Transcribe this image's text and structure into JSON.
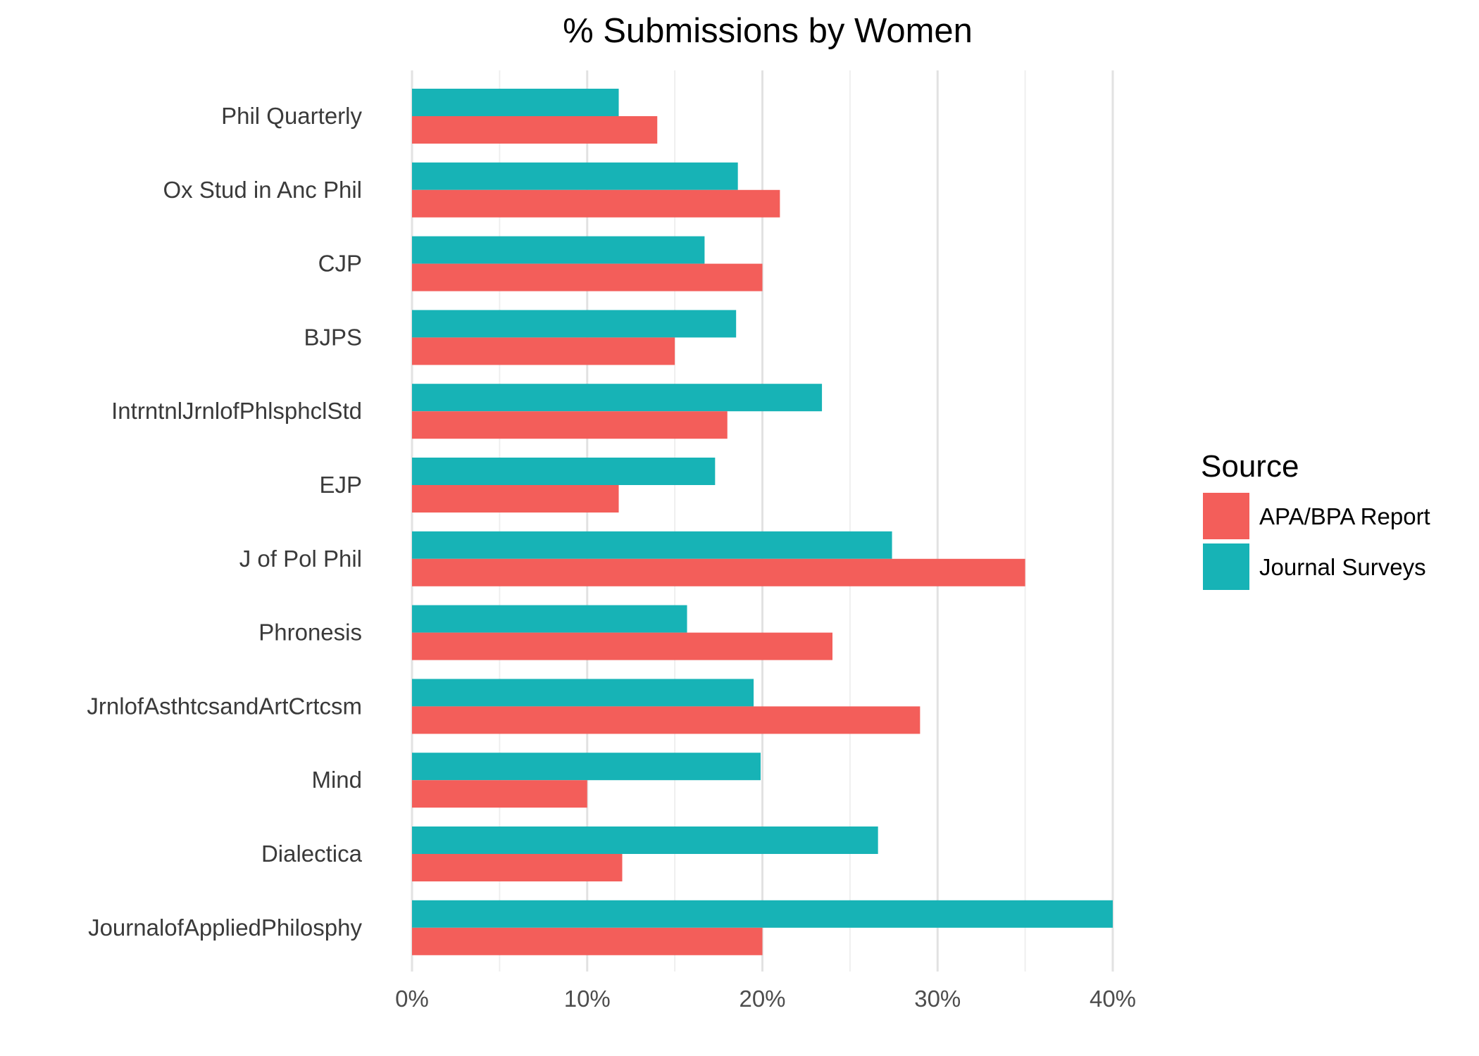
{
  "chart_data": {
    "type": "bar",
    "orientation": "horizontal",
    "title": "% Submissions by Women",
    "xlabel": "",
    "ylabel": "",
    "categories": [
      "Phil Quarterly",
      "Ox Stud in Anc Phil",
      "CJP",
      "BJPS",
      "IntrntnlJrnlofPhlsphclStd",
      "EJP",
      "J of Pol Phil",
      "Phronesis",
      "JrnlofAsthtcsandArtCrtcsm",
      "Mind",
      "Dialectica",
      "JournalofAppliedPhilosphy"
    ],
    "series": [
      {
        "name": "Journal Surveys",
        "color": "#17b3b6",
        "values": [
          11.8,
          18.6,
          16.7,
          18.5,
          23.4,
          17.3,
          27.4,
          15.7,
          19.5,
          19.9,
          26.6,
          40.0
        ]
      },
      {
        "name": "APA/BPA Report",
        "color": "#f35e5a",
        "values": [
          14.0,
          21.0,
          20.0,
          15.0,
          18.0,
          11.8,
          35.0,
          24.0,
          29.0,
          10.0,
          12.0,
          20.0
        ]
      }
    ],
    "xlim": [
      0,
      40
    ],
    "x_ticks": [
      0,
      10,
      20,
      30,
      40
    ],
    "x_tick_labels": [
      "0%",
      "10%",
      "20%",
      "30%",
      "40%"
    ],
    "grid": true,
    "legend": {
      "title": "Source",
      "position": "right",
      "entries": [
        {
          "label": "APA/BPA Report",
          "color": "#f35e5a"
        },
        {
          "label": "Journal Surveys",
          "color": "#17b3b6"
        }
      ]
    }
  }
}
